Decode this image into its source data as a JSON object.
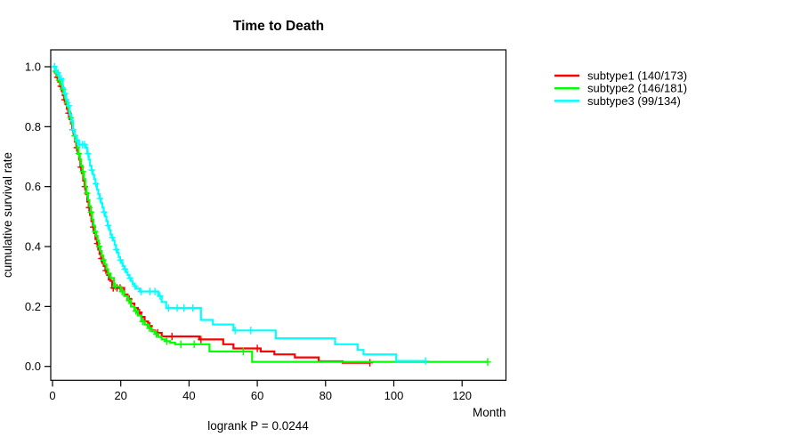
{
  "chart_data": {
    "type": "line",
    "subtype": "kaplan-meier-step-survival",
    "title": "Time to Death",
    "xlabel": "Month",
    "ylabel": "cumulative survival rate",
    "annotation": "logrank P = 0.0244",
    "xlim": [
      0,
      133
    ],
    "ylim": [
      0.0,
      1.0
    ],
    "x_ticks": [
      0,
      20,
      40,
      60,
      80,
      100,
      120
    ],
    "y_ticks": [
      0.0,
      0.2,
      0.4,
      0.6,
      0.8,
      1.0
    ],
    "grid": false,
    "legend_position": "right-outside",
    "series": [
      {
        "name": "subtype1 (140/173)",
        "color": "#FF0000",
        "end_month": 93,
        "steps": [
          [
            0,
            1.0
          ],
          [
            0.7,
            0.98
          ],
          [
            1.2,
            0.965
          ],
          [
            1.7,
            0.95
          ],
          [
            2.2,
            0.935
          ],
          [
            2.7,
            0.92
          ],
          [
            3,
            0.905
          ],
          [
            3.4,
            0.89
          ],
          [
            3.8,
            0.875
          ],
          [
            4.2,
            0.86
          ],
          [
            4.6,
            0.845
          ],
          [
            5,
            0.825
          ],
          [
            5.4,
            0.81
          ],
          [
            5.8,
            0.79
          ],
          [
            6.2,
            0.77
          ],
          [
            6.6,
            0.75
          ],
          [
            7,
            0.73
          ],
          [
            7.4,
            0.71
          ],
          [
            7.8,
            0.69
          ],
          [
            8.2,
            0.665
          ],
          [
            8.6,
            0.645
          ],
          [
            9,
            0.62
          ],
          [
            9.4,
            0.6
          ],
          [
            9.8,
            0.575
          ],
          [
            10.2,
            0.55
          ],
          [
            10.6,
            0.53
          ],
          [
            11,
            0.505
          ],
          [
            11.4,
            0.485
          ],
          [
            11.8,
            0.465
          ],
          [
            12.2,
            0.445
          ],
          [
            12.6,
            0.425
          ],
          [
            13,
            0.41
          ],
          [
            13.4,
            0.39
          ],
          [
            13.8,
            0.375
          ],
          [
            14.2,
            0.36
          ],
          [
            14.6,
            0.345
          ],
          [
            15,
            0.335
          ],
          [
            15.5,
            0.32
          ],
          [
            16,
            0.305
          ],
          [
            16.5,
            0.29
          ],
          [
            17,
            0.285
          ],
          [
            17.5,
            0.262
          ],
          [
            21,
            0.24
          ],
          [
            22,
            0.225
          ],
          [
            23,
            0.21
          ],
          [
            24,
            0.195
          ],
          [
            25,
            0.18
          ],
          [
            26,
            0.165
          ],
          [
            27,
            0.15
          ],
          [
            28,
            0.135
          ],
          [
            29,
            0.12
          ],
          [
            30,
            0.112
          ],
          [
            32,
            0.1
          ],
          [
            43,
            0.09
          ],
          [
            50,
            0.074
          ],
          [
            53,
            0.06
          ],
          [
            61,
            0.05
          ],
          [
            65,
            0.04
          ],
          [
            71,
            0.03
          ],
          [
            78,
            0.017
          ],
          [
            85,
            0.012
          ]
        ],
        "censor_months": [
          1.4,
          2.4,
          3.5,
          4.7,
          5.9,
          7.1,
          8.3,
          9.5,
          10.7,
          11.9,
          13.1,
          14.3,
          15.6,
          17.8,
          18.9,
          19.8,
          22.5,
          25.5,
          28.5,
          30.8,
          35,
          43.5,
          60,
          93
        ]
      },
      {
        "name": "subtype2 (146/181)",
        "color": "#00FF00",
        "end_month": 127.5,
        "steps": [
          [
            0,
            1.0
          ],
          [
            0.8,
            0.985
          ],
          [
            1.3,
            0.97
          ],
          [
            1.8,
            0.955
          ],
          [
            2.3,
            0.94
          ],
          [
            2.8,
            0.925
          ],
          [
            3.2,
            0.91
          ],
          [
            3.6,
            0.895
          ],
          [
            4,
            0.88
          ],
          [
            4.4,
            0.865
          ],
          [
            4.8,
            0.85
          ],
          [
            5.2,
            0.83
          ],
          [
            5.6,
            0.81
          ],
          [
            6,
            0.79
          ],
          [
            6.4,
            0.77
          ],
          [
            6.8,
            0.75
          ],
          [
            7.2,
            0.73
          ],
          [
            7.6,
            0.71
          ],
          [
            8,
            0.69
          ],
          [
            8.4,
            0.67
          ],
          [
            8.8,
            0.65
          ],
          [
            9.2,
            0.625
          ],
          [
            9.6,
            0.6
          ],
          [
            10,
            0.578
          ],
          [
            10.4,
            0.555
          ],
          [
            10.8,
            0.535
          ],
          [
            11.2,
            0.515
          ],
          [
            11.6,
            0.49
          ],
          [
            12,
            0.47
          ],
          [
            12.4,
            0.45
          ],
          [
            12.8,
            0.435
          ],
          [
            13.2,
            0.42
          ],
          [
            13.6,
            0.4
          ],
          [
            14,
            0.385
          ],
          [
            14.4,
            0.37
          ],
          [
            14.8,
            0.355
          ],
          [
            15.3,
            0.34
          ],
          [
            15.8,
            0.325
          ],
          [
            16.3,
            0.31
          ],
          [
            17,
            0.295
          ],
          [
            18,
            0.267
          ],
          [
            20,
            0.25
          ],
          [
            21,
            0.235
          ],
          [
            22,
            0.22
          ],
          [
            23,
            0.2
          ],
          [
            24,
            0.185
          ],
          [
            25,
            0.17
          ],
          [
            26,
            0.15
          ],
          [
            27,
            0.14
          ],
          [
            28,
            0.128
          ],
          [
            29,
            0.118
          ],
          [
            30,
            0.108
          ],
          [
            31,
            0.098
          ],
          [
            32,
            0.09
          ],
          [
            33,
            0.084
          ],
          [
            34.5,
            0.079
          ],
          [
            35.9,
            0.074
          ],
          [
            46,
            0.05
          ],
          [
            58.5,
            0.015
          ]
        ],
        "censor_months": [
          0.9,
          2,
          3.1,
          4.2,
          5.3,
          6.5,
          7.7,
          8.9,
          10.1,
          11.3,
          12.5,
          13.7,
          14.9,
          16.4,
          18.4,
          20.4,
          22.4,
          24.4,
          26.4,
          28.4,
          30.4,
          33.5,
          37.6,
          41.5,
          55.9,
          127.5
        ]
      },
      {
        "name": "subtype3 (99/134)",
        "color": "#00FFFF",
        "end_month": 109.3,
        "steps": [
          [
            0,
            1.0
          ],
          [
            1,
            0.98
          ],
          [
            2,
            0.96
          ],
          [
            3,
            0.93
          ],
          [
            3.5,
            0.91
          ],
          [
            4,
            0.89
          ],
          [
            4.5,
            0.87
          ],
          [
            5,
            0.84
          ],
          [
            5.5,
            0.82
          ],
          [
            6,
            0.79
          ],
          [
            6.5,
            0.77
          ],
          [
            7,
            0.755
          ],
          [
            7.5,
            0.74
          ],
          [
            9.8,
            0.73
          ],
          [
            10.2,
            0.71
          ],
          [
            10.6,
            0.69
          ],
          [
            11,
            0.67
          ],
          [
            11.4,
            0.655
          ],
          [
            11.8,
            0.64
          ],
          [
            12.2,
            0.625
          ],
          [
            12.6,
            0.61
          ],
          [
            13,
            0.59
          ],
          [
            13.4,
            0.575
          ],
          [
            13.8,
            0.56
          ],
          [
            14.2,
            0.545
          ],
          [
            14.6,
            0.53
          ],
          [
            15,
            0.515
          ],
          [
            15.4,
            0.5
          ],
          [
            15.8,
            0.485
          ],
          [
            16.2,
            0.47
          ],
          [
            16.6,
            0.455
          ],
          [
            17,
            0.44
          ],
          [
            17.4,
            0.43
          ],
          [
            17.8,
            0.42
          ],
          [
            18.2,
            0.405
          ],
          [
            18.6,
            0.39
          ],
          [
            19,
            0.38
          ],
          [
            19.4,
            0.365
          ],
          [
            19.8,
            0.355
          ],
          [
            20.2,
            0.345
          ],
          [
            20.6,
            0.335
          ],
          [
            21,
            0.325
          ],
          [
            21.5,
            0.315
          ],
          [
            22,
            0.305
          ],
          [
            22.5,
            0.295
          ],
          [
            23,
            0.285
          ],
          [
            23.5,
            0.275
          ],
          [
            24,
            0.268
          ],
          [
            24.5,
            0.26
          ],
          [
            25.5,
            0.25
          ],
          [
            31,
            0.235
          ],
          [
            32,
            0.215
          ],
          [
            33.3,
            0.195
          ],
          [
            43.5,
            0.155
          ],
          [
            47,
            0.14
          ],
          [
            53,
            0.12
          ],
          [
            65.4,
            0.094
          ],
          [
            82.8,
            0.074
          ],
          [
            89.4,
            0.055
          ],
          [
            91.1,
            0.04
          ],
          [
            100.7,
            0.018
          ]
        ],
        "censor_months": [
          0.6,
          1.6,
          2.6,
          3.7,
          4.8,
          6,
          7.2,
          8,
          8.8,
          9.4,
          10.4,
          11.5,
          12.7,
          13.9,
          15.1,
          16.3,
          17.5,
          18.7,
          19.9,
          21.2,
          22.7,
          24.2,
          25.9,
          28.5,
          30,
          31.5,
          34,
          36.5,
          38.5,
          41.1,
          53.5,
          58.1,
          109.3
        ]
      }
    ]
  }
}
